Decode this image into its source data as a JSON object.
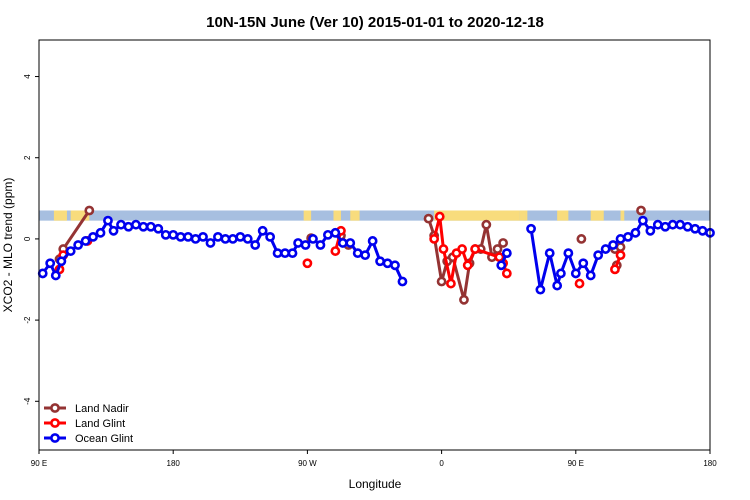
{
  "chart_data": {
    "type": "line",
    "title": "10N-15N June (Ver 10)   2015-01-01 to 2020-12-18",
    "xlabel": "Longitude",
    "ylabel": "XCO2 - MLO trend (ppm)",
    "xlim": [
      90,
      450
    ],
    "ylim": [
      -5.2,
      4.9
    ],
    "x_ticks": [
      {
        "value": 90,
        "label": "90 E"
      },
      {
        "value": 162,
        "label": "180"
      },
      {
        "value": 234,
        "label": "90 W"
      },
      {
        "value": 306,
        "label": "0"
      },
      {
        "value": 378,
        "label": "90 E"
      },
      {
        "value": 450,
        "label": "180"
      }
    ],
    "y_ticks": [
      {
        "value": -4,
        "label": "-4"
      },
      {
        "value": -2,
        "label": "-2"
      },
      {
        "value": 0,
        "label": "0"
      },
      {
        "value": 2,
        "label": "2"
      },
      {
        "value": 4,
        "label": "4"
      }
    ],
    "grid": false,
    "legend_position": "bottom-left",
    "land_band": {
      "y_range": [
        0.45,
        0.7
      ],
      "ocean_color": "#a7bfe0",
      "land_color": "#f8dc7d",
      "land_segments": [
        [
          98,
          105
        ],
        [
          107,
          117
        ],
        [
          232,
          236
        ],
        [
          248,
          252
        ],
        [
          257,
          262
        ],
        [
          302,
          348
        ],
        [
          348,
          351
        ],
        [
          351,
          352
        ],
        [
          368,
          374
        ],
        [
          386,
          393
        ],
        [
          402,
          404
        ]
      ]
    },
    "series": [
      {
        "name": "Land Nadir",
        "color": "#943333",
        "segments": [
          [
            [
              101,
              -0.5
            ],
            [
              103,
              -0.25
            ],
            [
              117,
              0.7
            ]
          ],
          [
            [
              236,
              0.02
            ]
          ],
          [
            [
              252,
              0.08
            ],
            [
              256,
              -0.15
            ]
          ],
          [
            [
              299,
              0.5
            ],
            [
              302,
              0.08
            ],
            [
              306,
              -1.05
            ],
            [
              309,
              -0.55
            ],
            [
              312,
              -0.45
            ],
            [
              318,
              -1.5
            ],
            [
              321,
              -0.6
            ],
            [
              324,
              -0.25
            ],
            [
              327,
              -0.25
            ],
            [
              330,
              0.35
            ],
            [
              333,
              -0.45
            ],
            [
              336,
              -0.25
            ],
            [
              339,
              -0.1
            ]
          ],
          [
            [
              381,
              0
            ]
          ],
          [
            [
              399,
              -0.25
            ],
            [
              402,
              -0.2
            ]
          ],
          [
            [
              400,
              -0.65
            ]
          ],
          [
            [
              413,
              0.7
            ]
          ]
        ]
      },
      {
        "name": "Land Glint",
        "color": "#ff0000",
        "segments": [
          [
            [
              101,
              -0.75
            ],
            [
              103,
              -0.4
            ]
          ],
          [
            [
              116,
              -0.05
            ]
          ],
          [
            [
              234,
              -0.6
            ]
          ],
          [
            [
              249,
              -0.3
            ],
            [
              252,
              0.2
            ]
          ],
          [
            [
              302,
              0
            ],
            [
              305,
              0.55
            ],
            [
              307,
              -0.25
            ],
            [
              311,
              -1.1
            ],
            [
              314,
              -0.35
            ],
            [
              317,
              -0.25
            ],
            [
              320,
              -0.65
            ],
            [
              324,
              -0.25
            ],
            [
              337,
              -0.45
            ],
            [
              339,
              -0.6
            ],
            [
              341,
              -0.85
            ]
          ],
          [
            [
              380,
              -1.1
            ]
          ],
          [
            [
              399,
              -0.75
            ],
            [
              402,
              -0.4
            ]
          ]
        ]
      },
      {
        "name": "Ocean Glint",
        "color": "#0000ee",
        "segments": [
          [
            [
              92,
              -0.85
            ],
            [
              96,
              -0.6
            ],
            [
              99,
              -0.9
            ],
            [
              102,
              -0.55
            ],
            [
              107,
              -0.3
            ],
            [
              111,
              -0.15
            ],
            [
              115,
              -0.05
            ],
            [
              119,
              0.05
            ],
            [
              123,
              0.15
            ],
            [
              127,
              0.45
            ],
            [
              130,
              0.2
            ],
            [
              134,
              0.35
            ],
            [
              138,
              0.3
            ],
            [
              142,
              0.35
            ],
            [
              146,
              0.3
            ],
            [
              150,
              0.3
            ],
            [
              154,
              0.25
            ],
            [
              158,
              0.1
            ],
            [
              162,
              0.1
            ],
            [
              166,
              0.05
            ],
            [
              170,
              0.05
            ],
            [
              174,
              0
            ],
            [
              178,
              0.05
            ],
            [
              182,
              -0.1
            ],
            [
              186,
              0.05
            ],
            [
              190,
              0
            ],
            [
              194,
              0
            ],
            [
              198,
              0.05
            ],
            [
              202,
              0
            ],
            [
              206,
              -0.15
            ],
            [
              210,
              0.2
            ],
            [
              214,
              0.05
            ],
            [
              218,
              -0.35
            ],
            [
              222,
              -0.35
            ],
            [
              226,
              -0.35
            ],
            [
              229,
              -0.1
            ],
            [
              233,
              -0.15
            ],
            [
              237,
              0
            ],
            [
              241,
              -0.15
            ],
            [
              245,
              0.1
            ],
            [
              249,
              0.15
            ],
            [
              253,
              -0.1
            ],
            [
              257,
              -0.1
            ],
            [
              261,
              -0.35
            ],
            [
              265,
              -0.4
            ],
            [
              269,
              -0.05
            ],
            [
              273,
              -0.55
            ],
            [
              277,
              -0.6
            ],
            [
              281,
              -0.65
            ],
            [
              285,
              -1.05
            ]
          ],
          [
            [
              338,
              -0.65
            ],
            [
              341,
              -0.35
            ]
          ],
          [
            [
              354,
              0.25
            ],
            [
              359,
              -1.25
            ],
            [
              364,
              -0.35
            ],
            [
              368,
              -1.15
            ],
            [
              370,
              -0.85
            ],
            [
              374,
              -0.35
            ],
            [
              378,
              -0.85
            ],
            [
              382,
              -0.6
            ],
            [
              386,
              -0.9
            ],
            [
              390,
              -0.4
            ],
            [
              394,
              -0.25
            ],
            [
              398,
              -0.15
            ],
            [
              402,
              0
            ],
            [
              406,
              0.05
            ],
            [
              410,
              0.15
            ],
            [
              414,
              0.45
            ],
            [
              418,
              0.2
            ],
            [
              422,
              0.35
            ],
            [
              426,
              0.3
            ],
            [
              430,
              0.35
            ],
            [
              434,
              0.35
            ],
            [
              438,
              0.3
            ],
            [
              442,
              0.25
            ],
            [
              446,
              0.2
            ],
            [
              450,
              0.15
            ]
          ]
        ]
      }
    ]
  }
}
